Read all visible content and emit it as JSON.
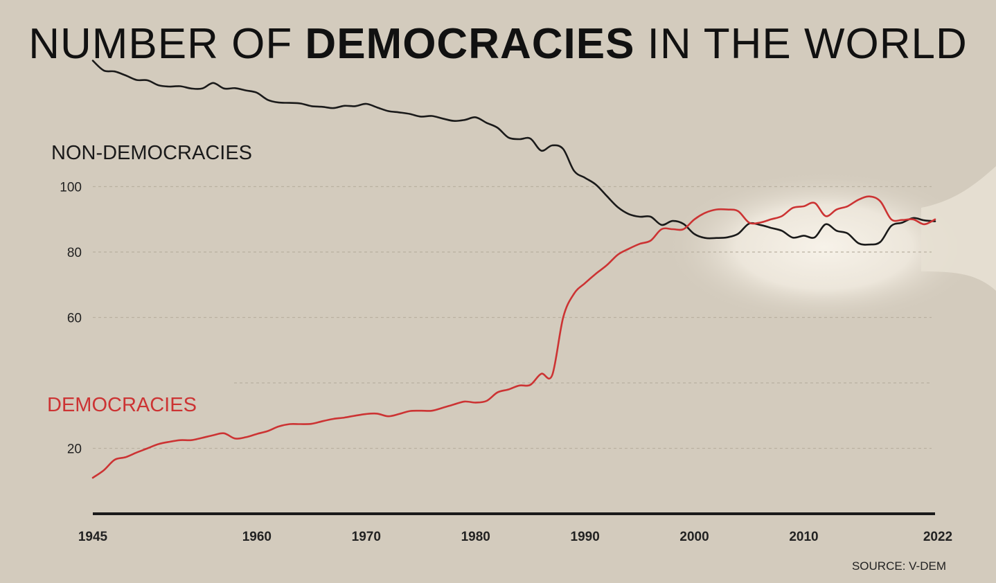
{
  "chart_data": {
    "type": "line",
    "title_parts": [
      {
        "text": "NUMBER OF ",
        "bold": false
      },
      {
        "text": "DEMOCRACIES",
        "bold": true
      },
      {
        "text": " IN THE WORLD",
        "bold": false
      }
    ],
    "source": "SOURCE: V-DEM",
    "xlabel": "",
    "ylabel": "",
    "xlim": [
      1945,
      2022
    ],
    "ylim": [
      0,
      138
    ],
    "y_ticks": [
      20,
      40,
      60,
      80,
      100
    ],
    "y_tick_labels": [
      "20",
      "",
      "60",
      "80",
      "100"
    ],
    "x_ticks": [
      1945,
      1960,
      1970,
      1980,
      1990,
      2000,
      2010,
      2022
    ],
    "x_tick_labels": [
      "1945",
      "1960",
      "1970",
      "1980",
      "1990",
      "2000",
      "2010",
      "2022"
    ],
    "highlight": {
      "x_center": 2011,
      "y_center": 89
    },
    "colors": {
      "background": "#d3cbbd",
      "non_democracies": "#1a1a1a",
      "democracies": "#cc3333",
      "grid": "#b9b0a1",
      "axis": "#1a1a1a",
      "highlight": "#f6f1e8"
    },
    "x": [
      1945,
      1946,
      1947,
      1948,
      1949,
      1950,
      1951,
      1952,
      1953,
      1954,
      1955,
      1956,
      1957,
      1958,
      1959,
      1960,
      1961,
      1962,
      1963,
      1964,
      1965,
      1966,
      1967,
      1968,
      1969,
      1970,
      1971,
      1972,
      1973,
      1974,
      1975,
      1976,
      1977,
      1978,
      1979,
      1980,
      1981,
      1982,
      1983,
      1984,
      1985,
      1986,
      1987,
      1988,
      1989,
      1990,
      1991,
      1992,
      1993,
      1994,
      1995,
      1996,
      1997,
      1998,
      1999,
      2000,
      2001,
      2002,
      2003,
      2004,
      2005,
      2006,
      2007,
      2008,
      2009,
      2010,
      2011,
      2012,
      2013,
      2014,
      2015,
      2016,
      2017,
      2018,
      2019,
      2020,
      2021,
      2022
    ],
    "series": [
      {
        "name": "NON-DEMOCRACIES",
        "values": [
          138.5,
          135.5,
          135.2,
          134.0,
          132.6,
          132.5,
          131.0,
          130.6,
          130.7,
          130.0,
          130.0,
          131.7,
          130.0,
          130.1,
          129.4,
          128.7,
          126.5,
          125.7,
          125.6,
          125.4,
          124.6,
          124.4,
          124.0,
          124.7,
          124.6,
          125.3,
          124.2,
          123.1,
          122.7,
          122.2,
          121.4,
          121.6,
          120.8,
          120.1,
          120.4,
          121.2,
          119.5,
          118.0,
          115.0,
          114.5,
          114.7,
          111.0,
          112.6,
          111.5,
          104.8,
          102.7,
          100.6,
          97.1,
          93.7,
          91.6,
          90.8,
          90.8,
          88.3,
          89.5,
          88.6,
          85.5,
          84.3,
          84.3,
          84.5,
          85.6,
          88.7,
          88.3,
          87.4,
          86.5,
          84.4,
          85.0,
          84.5,
          88.5,
          86.5,
          85.7,
          82.7,
          82.3,
          83.1,
          88.0,
          89.0,
          90.4,
          89.7,
          89.4
        ]
      },
      {
        "name": "DEMOCRACIES",
        "values": [
          11.0,
          13.3,
          16.5,
          17.3,
          18.7,
          20.0,
          21.3,
          22.0,
          22.5,
          22.5,
          23.2,
          24.0,
          24.6,
          23.0,
          23.4,
          24.4,
          25.3,
          26.7,
          27.4,
          27.4,
          27.5,
          28.3,
          29.0,
          29.4,
          30.0,
          30.5,
          30.6,
          29.8,
          30.5,
          31.4,
          31.5,
          31.5,
          32.4,
          33.4,
          34.3,
          34.0,
          34.5,
          37.1,
          38.0,
          39.2,
          39.4,
          42.8,
          42.4,
          60.0,
          67.3,
          70.5,
          73.4,
          76.0,
          79.2,
          81.0,
          82.5,
          83.5,
          87.0,
          87.0,
          87.0,
          90.0,
          92.0,
          93.0,
          93.0,
          92.5,
          89.0,
          89.0,
          90.0,
          91.0,
          93.5,
          94.0,
          95.0,
          91.0,
          93.0,
          94.0,
          96.0,
          97.0,
          95.5,
          90.0,
          89.8,
          90.0,
          88.5,
          90.0
        ]
      }
    ]
  }
}
